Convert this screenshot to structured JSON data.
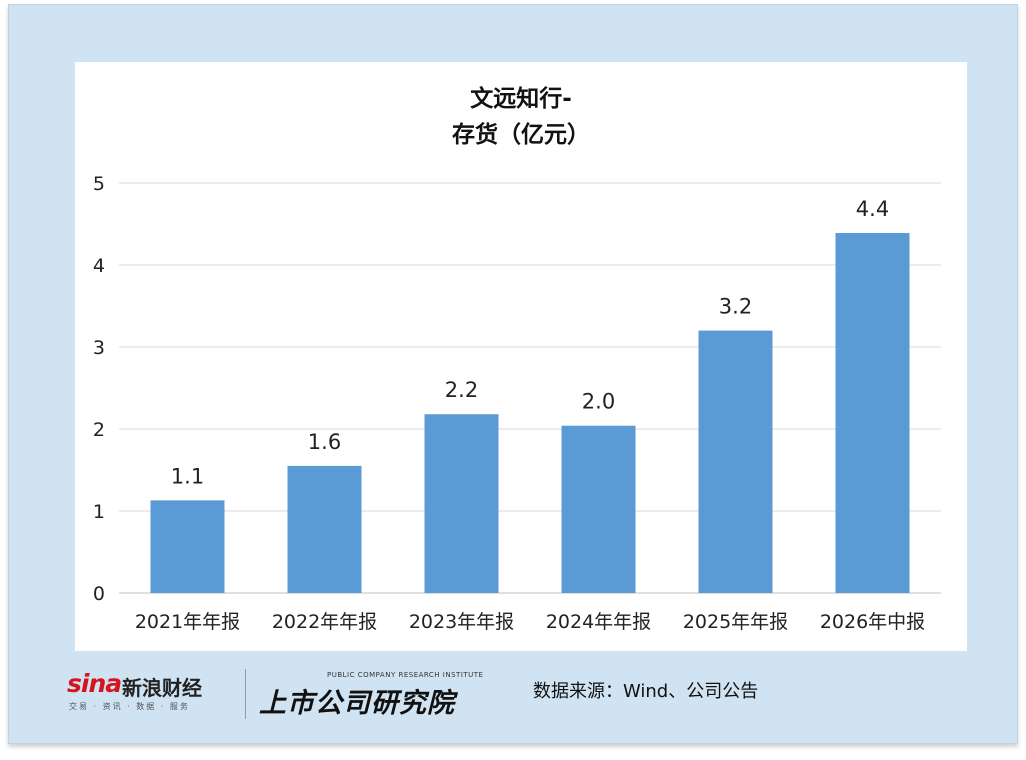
{
  "chart_data": {
    "type": "bar",
    "title": "文远知行-",
    "subtitle": "存货（亿元）",
    "categories": [
      "2021年年报",
      "2022年年报",
      "2023年年报",
      "2024年年报",
      "2025年年报",
      "2026年中报"
    ],
    "values": [
      1.13,
      1.55,
      2.18,
      2.04,
      3.2,
      4.39
    ],
    "data_labels": [
      "1.1",
      "1.6",
      "2.2",
      "2.0",
      "3.2",
      "4.4"
    ],
    "yticks": [
      "0",
      "1",
      "2",
      "3",
      "4",
      "5"
    ],
    "ylim": [
      0,
      5
    ],
    "xlabel": "",
    "ylabel": "",
    "grid": true,
    "bar_color": "#5b9bd5"
  },
  "footer": {
    "sina_brand": "sina",
    "sina_name": "新浪财经",
    "sina_tagline": "交易 · 资讯 · 数据 · 服务",
    "research_en": "PUBLIC COMPANY RESEARCH INSTITUTE",
    "research_cn": "上市公司研究院",
    "source": "数据来源：Wind、公司公告"
  }
}
